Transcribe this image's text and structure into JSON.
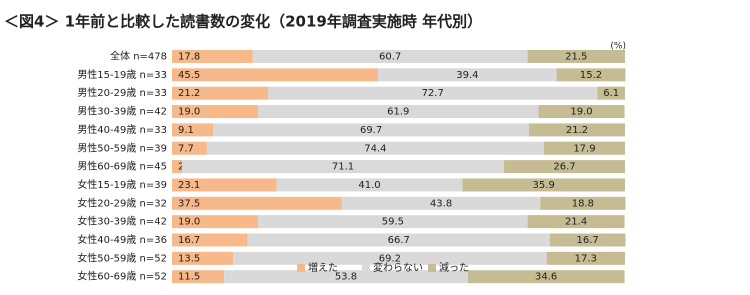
{
  "chart_data": {
    "type": "stacked-bar-horizontal",
    "title": "＜図4＞ 1年前と比較した読書数の変化（2019年調査実施時 年代別）",
    "unit": "(%)",
    "xlim": [
      0,
      100
    ],
    "legend": "bottom",
    "categories": [
      "全体 n=478",
      "男性15-19歳 n=33",
      "男性20-29歳 n=33",
      "男性30-39歳 n=42",
      "男性40-49歳 n=33",
      "男性50-59歳 n=39",
      "男性60-69歳 n=45",
      "女性15-19歳 n=39",
      "女性20-29歳 n=32",
      "女性30-39歳 n=42",
      "女性40-49歳 n=36",
      "女性50-59歳 n=52",
      "女性60-69歳 n=52"
    ],
    "series": [
      {
        "name": "増えた",
        "color": "#f7b88a",
        "values": [
          17.8,
          45.5,
          21.2,
          19.0,
          9.1,
          7.7,
          2.2,
          23.1,
          37.5,
          19.0,
          16.7,
          13.5,
          11.5
        ],
        "value_labels": [
          "17.8",
          "45.5",
          "21.2",
          "19.0",
          "9.1",
          "7.7",
          "2.2",
          "23.1",
          "37.5",
          "19.0",
          "16.7",
          "13.5",
          "11.5"
        ]
      },
      {
        "name": "変わらない",
        "color": "#d9d9d9",
        "values": [
          60.7,
          39.4,
          72.7,
          61.9,
          69.7,
          74.4,
          71.1,
          41.0,
          43.8,
          59.5,
          66.7,
          69.2,
          53.8
        ],
        "value_labels": [
          "60.7",
          "39.4",
          "72.7",
          "61.9",
          "69.7",
          "74.4",
          "71.1",
          "41.0",
          "43.8",
          "59.5",
          "66.7",
          "69.2",
          "53.8"
        ]
      },
      {
        "name": "減った",
        "color": "#c6bc93",
        "values": [
          21.5,
          15.2,
          6.1,
          19.0,
          21.2,
          17.9,
          26.7,
          35.9,
          18.8,
          21.4,
          16.7,
          17.3,
          34.6
        ],
        "value_labels": [
          "21.5",
          "15.2",
          "6.1",
          "19.0",
          "21.2",
          "17.9",
          "26.7",
          "35.9",
          "18.8",
          "21.4",
          "16.7",
          "17.3",
          "34.6"
        ]
      }
    ]
  }
}
